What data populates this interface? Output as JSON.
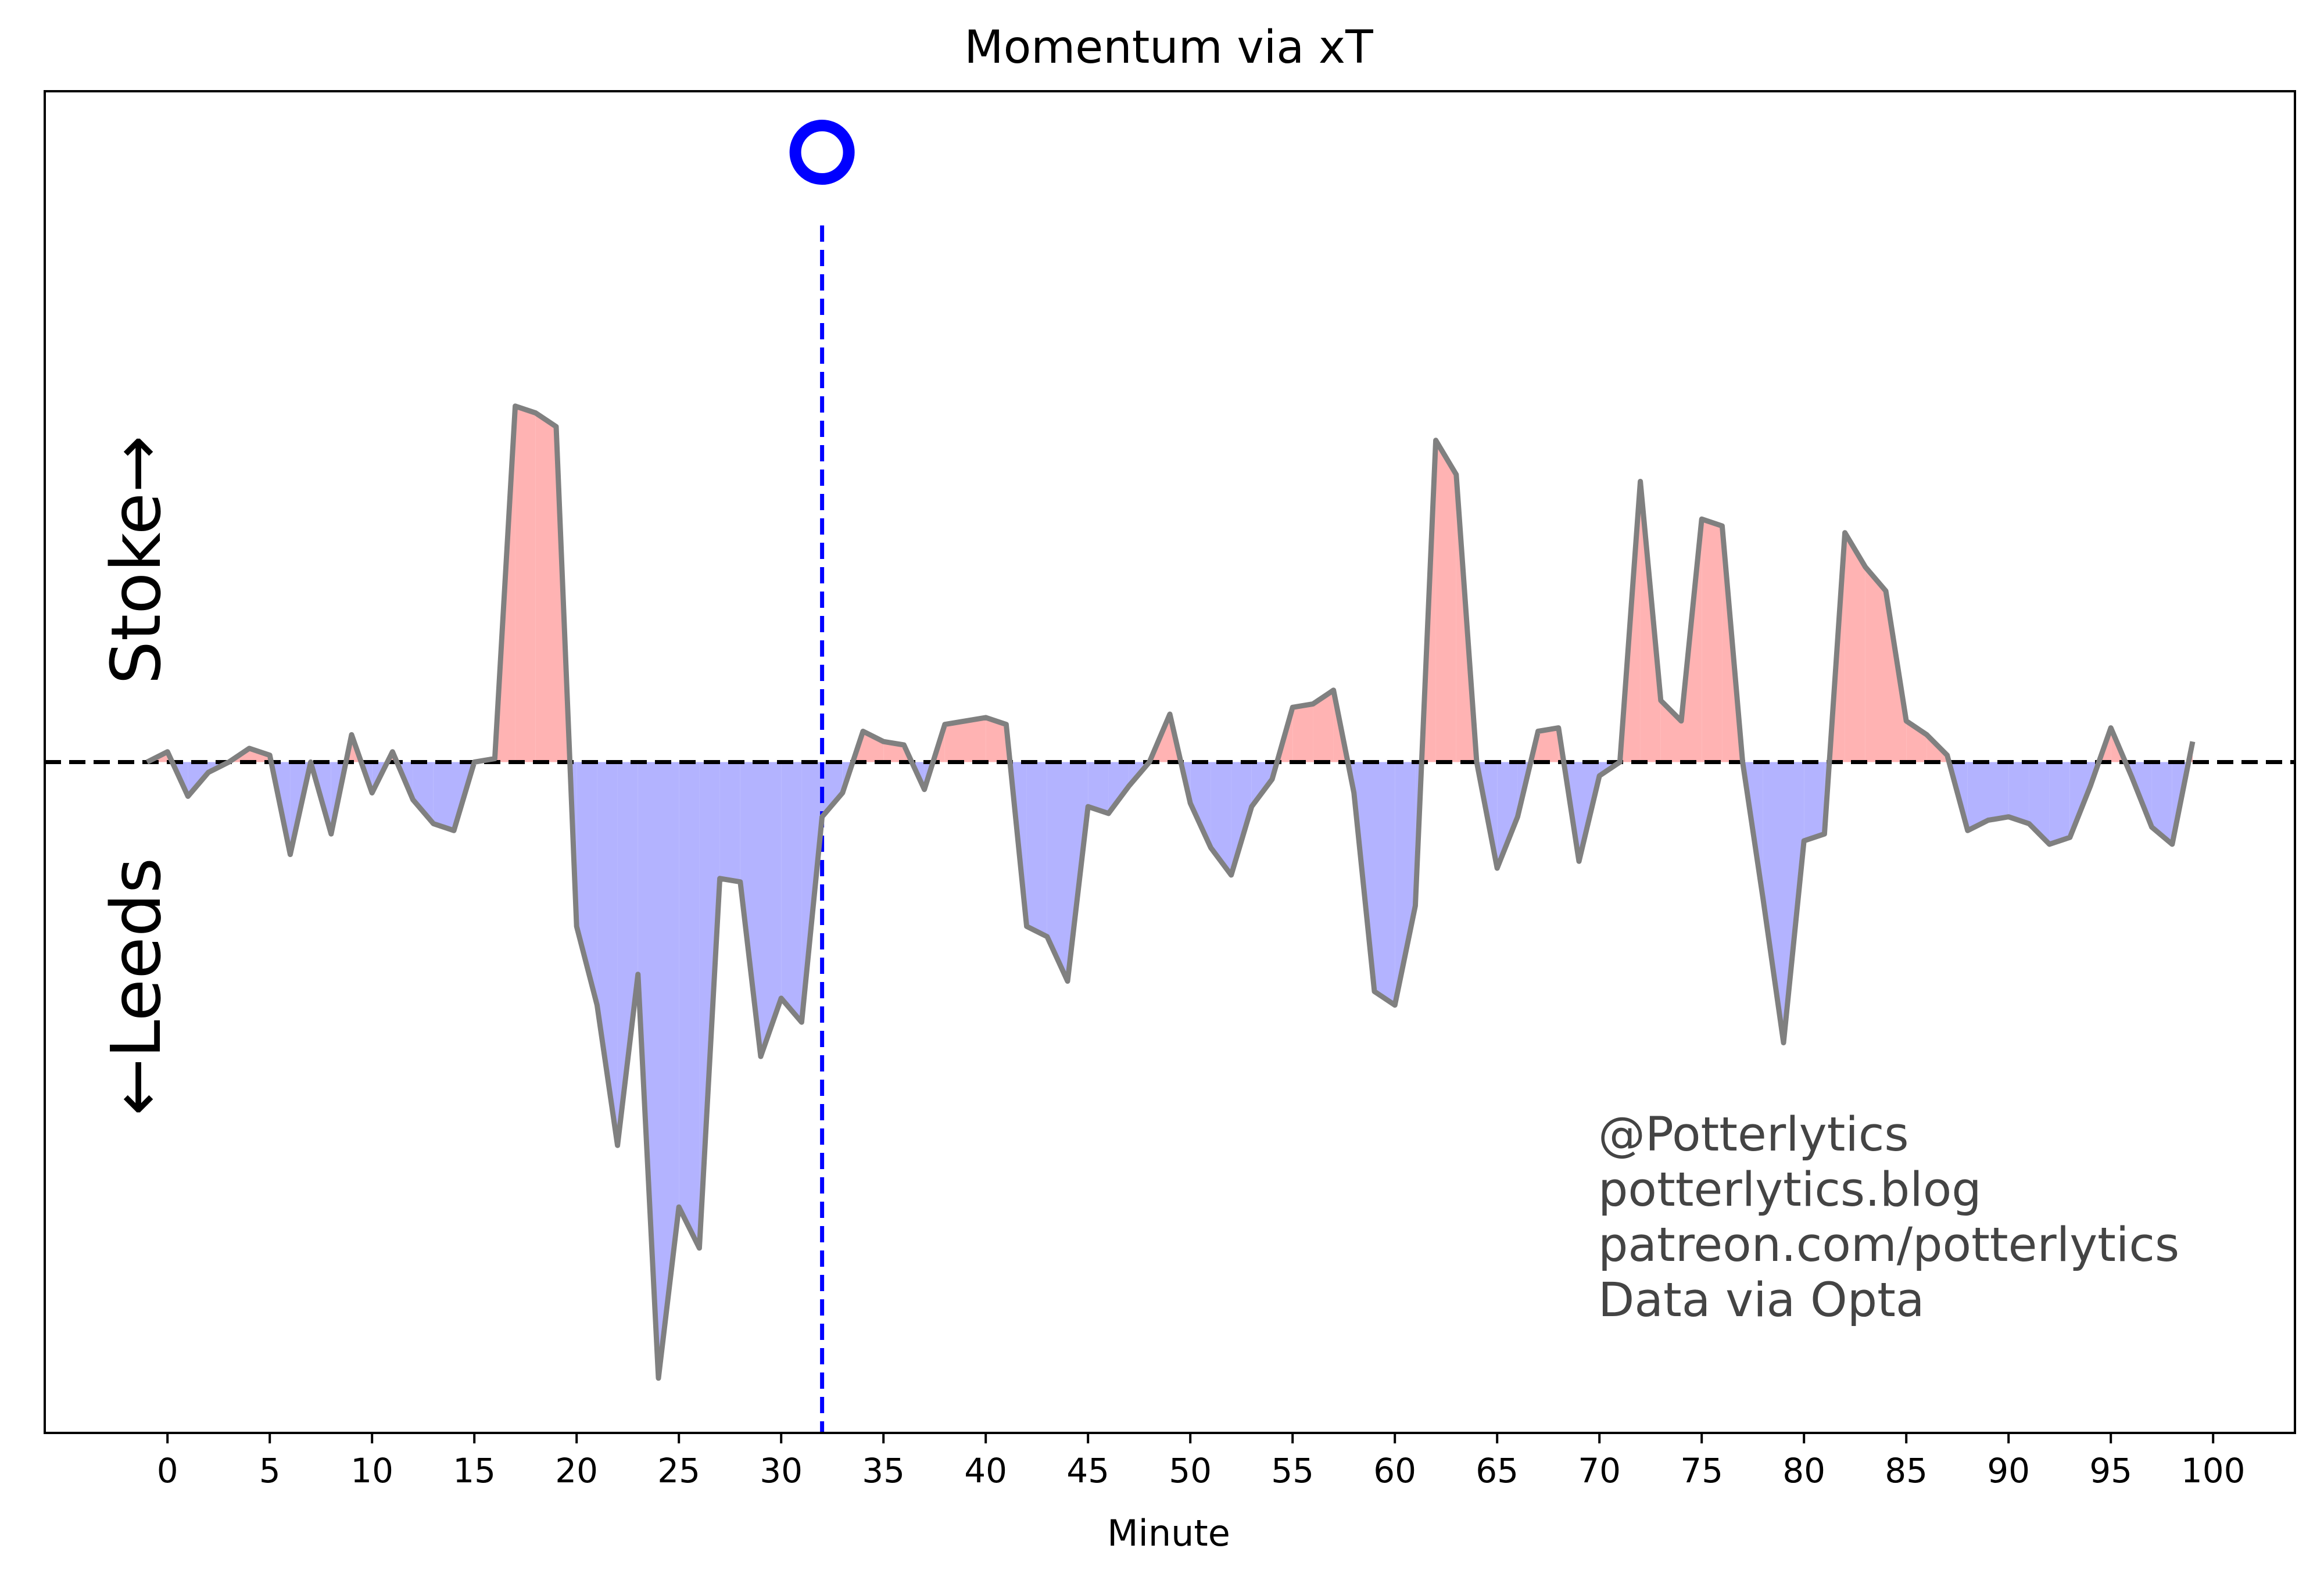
{
  "chart_data": {
    "type": "area",
    "title": "Momentum via xT",
    "xlabel": "Minute",
    "ylabel": "",
    "xlim": [
      -6,
      104
    ],
    "ylim": [
      -0.98,
      0.98
    ],
    "xticks": [
      0,
      5,
      10,
      15,
      20,
      25,
      30,
      35,
      40,
      45,
      50,
      55,
      60,
      65,
      70,
      75,
      80,
      85,
      90,
      95,
      100
    ],
    "grid": false,
    "legend": "none",
    "side_labels": {
      "upper": "Stoke→",
      "lower": "←Leeds"
    },
    "baseline": 0,
    "goal_marker": {
      "minute": 32,
      "team": "Leeds",
      "color": "#0000ff"
    },
    "colors": {
      "positive_fill": "#ffb3b3",
      "negative_fill": "#b3b3ff",
      "line": "#808080",
      "baseline": "#000000",
      "goal": "#0000ff"
    },
    "x": [
      -1,
      0,
      1,
      2,
      3,
      4,
      5,
      6,
      7,
      8,
      9,
      10,
      11,
      12,
      13,
      14,
      15,
      16,
      17,
      18,
      19,
      20,
      21,
      22,
      23,
      24,
      25,
      26,
      27,
      28,
      29,
      30,
      31,
      32,
      33,
      34,
      35,
      36,
      37,
      38,
      39,
      40,
      41,
      42,
      43,
      44,
      45,
      46,
      47,
      48,
      49,
      50,
      51,
      52,
      53,
      54,
      55,
      56,
      57,
      58,
      59,
      60,
      61,
      62,
      63,
      64,
      65,
      66,
      67,
      68,
      69,
      70,
      71,
      72,
      73,
      74,
      75,
      76,
      77,
      78,
      79,
      80,
      81,
      82,
      83,
      84,
      85,
      86,
      87,
      88,
      89,
      90,
      91,
      92,
      93,
      94,
      95,
      96,
      97,
      98,
      99
    ],
    "values": [
      0.0,
      0.015,
      -0.05,
      -0.015,
      0.0,
      0.02,
      0.01,
      -0.135,
      0.0,
      -0.105,
      0.04,
      -0.045,
      0.015,
      -0.055,
      -0.09,
      -0.1,
      0.0,
      0.005,
      0.52,
      0.51,
      0.49,
      -0.24,
      -0.355,
      -0.56,
      -0.31,
      -0.9,
      -0.65,
      -0.71,
      -0.17,
      -0.175,
      -0.43,
      -0.345,
      -0.38,
      -0.08,
      -0.045,
      0.045,
      0.03,
      0.025,
      -0.04,
      0.055,
      0.06,
      0.065,
      0.055,
      -0.24,
      -0.255,
      -0.32,
      -0.065,
      -0.075,
      -0.035,
      0.0,
      0.07,
      -0.06,
      -0.125,
      -0.165,
      -0.065,
      -0.025,
      0.08,
      0.085,
      0.105,
      -0.045,
      -0.335,
      -0.355,
      -0.21,
      0.47,
      0.42,
      0.0,
      -0.155,
      -0.08,
      0.045,
      0.05,
      -0.145,
      -0.02,
      0.0,
      0.41,
      0.09,
      0.06,
      0.355,
      0.345,
      0.0,
      -0.2,
      -0.41,
      -0.115,
      -0.105,
      0.335,
      0.285,
      0.25,
      0.06,
      0.04,
      0.01,
      -0.1,
      -0.085,
      -0.08,
      -0.09,
      -0.12,
      -0.11,
      -0.035,
      0.05,
      -0.02,
      -0.095,
      -0.12,
      0.03
    ],
    "annotations": [
      "@Potterlytics",
      "potterlytics.blog",
      "patreon.com/potterlytics",
      "Data via Opta"
    ]
  }
}
